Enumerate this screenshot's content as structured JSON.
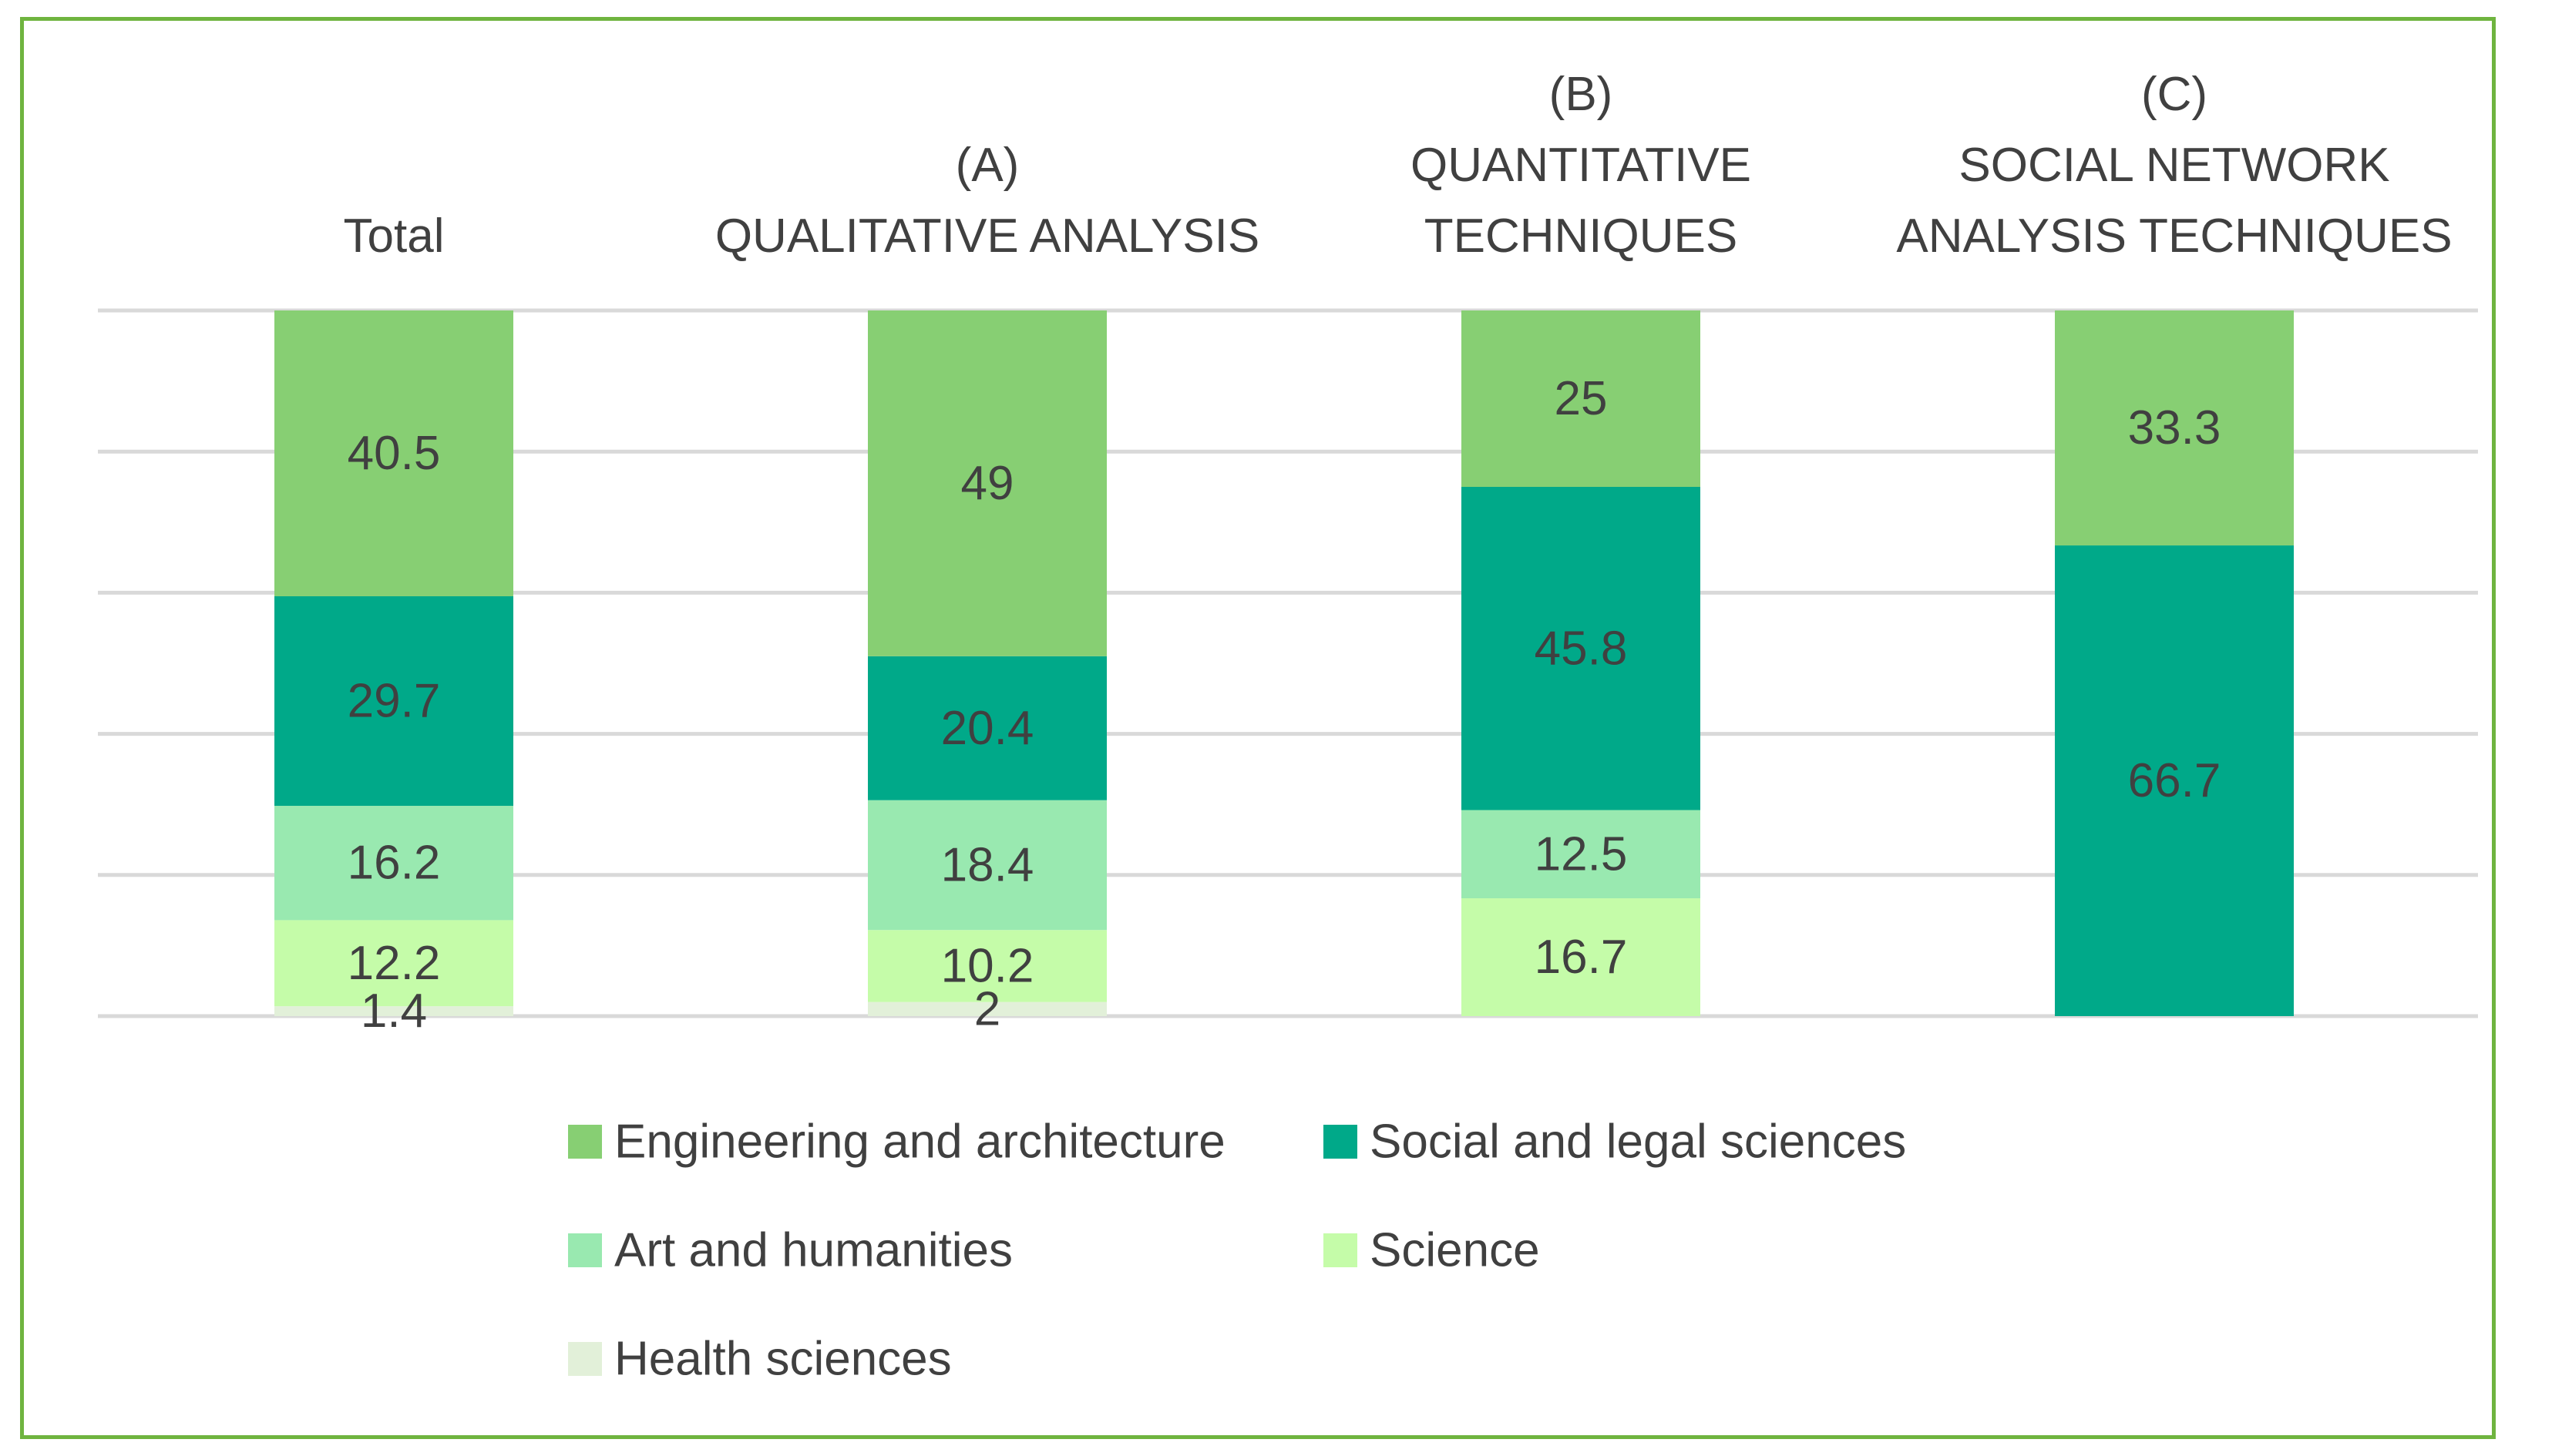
{
  "chart_data": {
    "type": "bar",
    "stacked": true,
    "title": "",
    "xlabel": "",
    "ylabel": "",
    "ylim": [
      0,
      100
    ],
    "grid": true,
    "legend_position": "bottom",
    "categories": [
      [
        "Total"
      ],
      [
        "(A)",
        "QUALITATIVE ANALYSIS"
      ],
      [
        "(B)",
        "QUANTITATIVE",
        "TECHNIQUES"
      ],
      [
        "(C)",
        "SOCIAL NETWORK",
        "ANALYSIS TECHNIQUES"
      ]
    ],
    "series": [
      {
        "name": "Health sciences",
        "color": "#e2f0d9",
        "values": [
          1.4,
          2,
          null,
          null
        ],
        "labels": [
          "1.4",
          "2",
          "",
          ""
        ]
      },
      {
        "name": "Science",
        "color": "#c5fca9",
        "values": [
          12.2,
          10.2,
          16.7,
          null
        ],
        "labels": [
          "12.2",
          "10.2",
          "16.7",
          ""
        ]
      },
      {
        "name": "Art and humanities",
        "color": "#99e9b0",
        "values": [
          16.2,
          18.4,
          12.5,
          null
        ],
        "labels": [
          "16.2",
          "18.4",
          "12.5",
          ""
        ]
      },
      {
        "name": "Social and legal sciences",
        "color": "#00a989",
        "values": [
          29.7,
          20.4,
          45.8,
          66.7
        ],
        "labels": [
          "29.7",
          "20.4",
          "45.8",
          "66.7"
        ]
      },
      {
        "name": "Engineering and architecture",
        "color": "#87cf73",
        "values": [
          40.5,
          49,
          25,
          33.3
        ],
        "labels": [
          "40.5",
          "49",
          "25",
          "33.3"
        ]
      }
    ],
    "legend_order": [
      "Engineering and architecture",
      "Social and legal sciences",
      "Art and humanities",
      "Science",
      "Health sciences"
    ]
  }
}
